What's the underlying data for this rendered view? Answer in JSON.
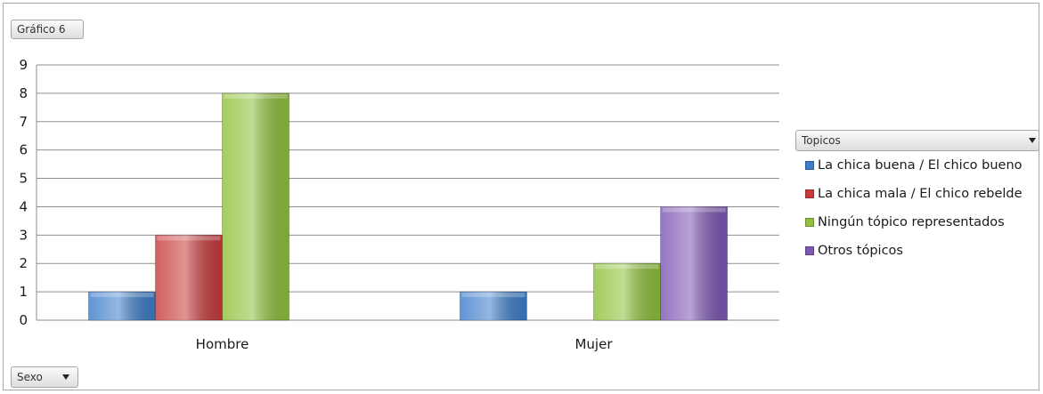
{
  "chart_title_button": "Gráfico 6",
  "axis_field_button": "Sexo",
  "legend_field_button": "Topicos",
  "colors": {
    "La chica buena / El chico bueno": "#3d7dca",
    "La chica mala / El chico rebelde": "#c93b3b",
    "Ningún tópico representados": "#8fc13a",
    "Otros tópicos": "#7e57b5"
  },
  "chart_data": {
    "type": "bar",
    "categories": [
      "Hombre",
      "Mujer"
    ],
    "series": [
      {
        "name": "La chica buena / El chico bueno",
        "values": [
          1,
          1
        ]
      },
      {
        "name": "La chica mala / El chico rebelde",
        "values": [
          3,
          0
        ]
      },
      {
        "name": "Ningún tópico representados",
        "values": [
          8,
          2
        ]
      },
      {
        "name": "Otros tópicos",
        "values": [
          0,
          4
        ]
      }
    ],
    "ylim": [
      0,
      9
    ],
    "yticks": [
      0,
      1,
      2,
      3,
      4,
      5,
      6,
      7,
      8,
      9
    ],
    "grid": true,
    "legend_position": "right"
  }
}
